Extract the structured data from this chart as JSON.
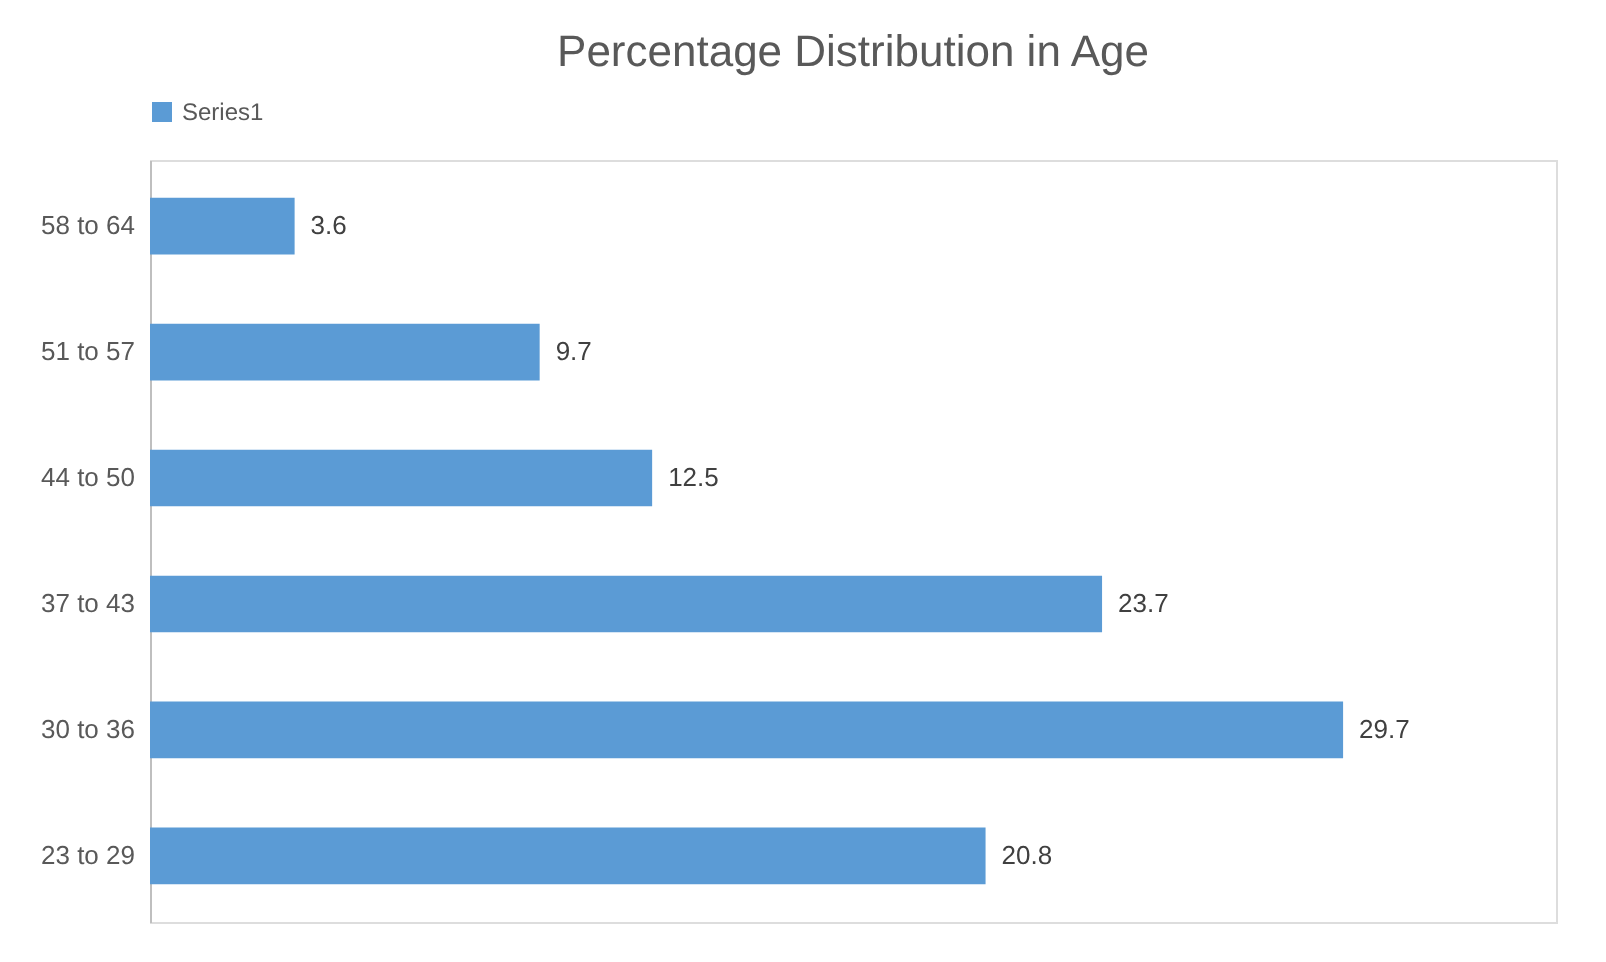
{
  "chart_data": {
    "type": "bar",
    "orientation": "horizontal",
    "title": "Percentage Distribution in Age",
    "categories": [
      "58 to 64",
      "51 to 57",
      "44 to 50",
      "37 to 43",
      "30 to 36",
      "23 to 29"
    ],
    "series": [
      {
        "name": "Series1",
        "color": "#5b9bd5",
        "values": [
          3.6,
          9.7,
          12.5,
          23.7,
          29.7,
          20.8
        ]
      }
    ],
    "xlim": [
      0,
      35
    ],
    "tick_labels": "y",
    "data_labels": true,
    "legend": "top",
    "grid": false
  }
}
